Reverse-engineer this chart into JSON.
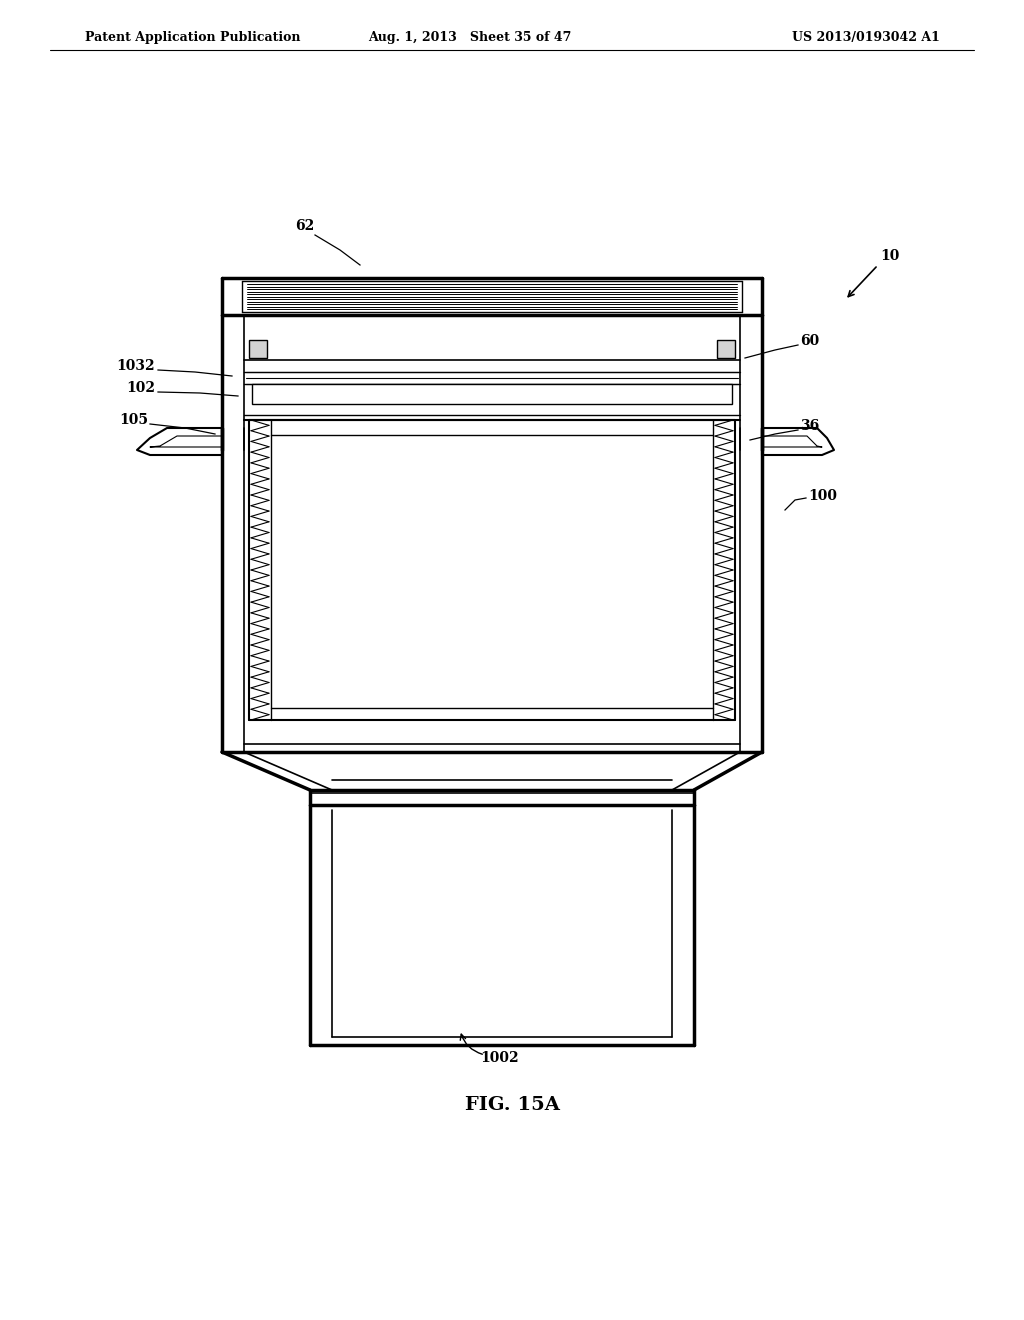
{
  "header_left": "Patent Application Publication",
  "header_mid": "Aug. 1, 2013   Sheet 35 of 47",
  "header_right": "US 2013/0193042 A1",
  "figure_label": "FIG. 15A",
  "bg_color": "#ffffff",
  "line_color": "#000000"
}
